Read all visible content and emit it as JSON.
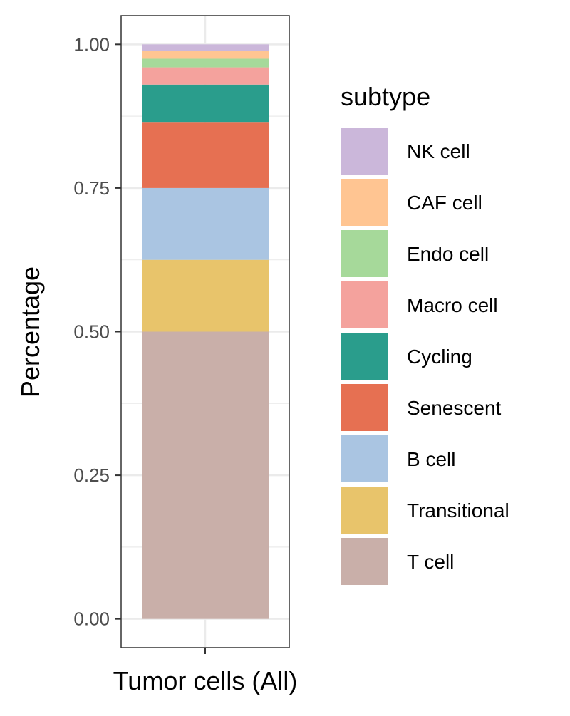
{
  "chart_data": {
    "type": "bar",
    "stacked": true,
    "categories": [
      "Tumor cells (All)"
    ],
    "xlabel": "Tumor cells (All)",
    "ylabel": "Percentage",
    "ylim": [
      -0.05,
      1.05
    ],
    "yticks": [
      "0.00",
      "0.25",
      "0.50",
      "0.75",
      "1.00"
    ],
    "grid": true,
    "legend_title": "subtype",
    "legend_position": "right",
    "series": [
      {
        "name": "T cell",
        "values": [
          0.5
        ],
        "color": "#C9AFA9"
      },
      {
        "name": "Transitional",
        "values": [
          0.125
        ],
        "color": "#E8C46B"
      },
      {
        "name": "B cell",
        "values": [
          0.125
        ],
        "color": "#AAC5E2"
      },
      {
        "name": "Senescent",
        "values": [
          0.115
        ],
        "color": "#E67052"
      },
      {
        "name": "Cycling",
        "values": [
          0.065
        ],
        "color": "#2A9D8C"
      },
      {
        "name": "Macro cell",
        "values": [
          0.03
        ],
        "color": "#F4A29D"
      },
      {
        "name": "Endo cell",
        "values": [
          0.015
        ],
        "color": "#A6D99A"
      },
      {
        "name": "CAF cell",
        "values": [
          0.013
        ],
        "color": "#FFC592"
      },
      {
        "name": "NK cell",
        "values": [
          0.012
        ],
        "color": "#CBB7DA"
      }
    ]
  }
}
